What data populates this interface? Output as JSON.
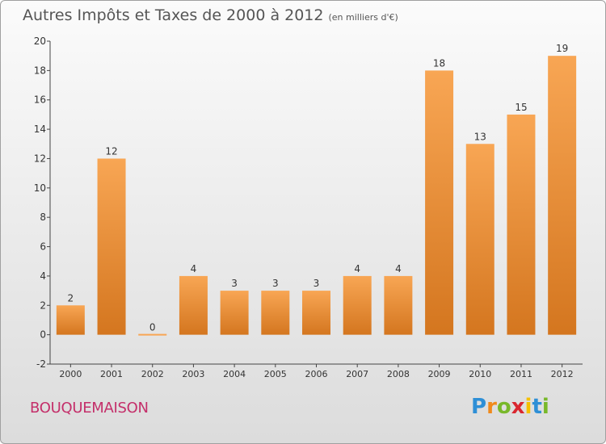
{
  "title": "Autres Impôts et Taxes de 2000 à 2012",
  "subtitle": "(en milliers d'€)",
  "commune": "BOUQUEMAISON",
  "brand": {
    "letters": [
      "P",
      "r",
      "o",
      "x",
      "i",
      "t",
      "i"
    ],
    "colors": [
      "#2e8fd6",
      "#f08a1c",
      "#78b82a",
      "#d9272f",
      "#f5c000",
      "#2e8fd6",
      "#78b82a"
    ]
  },
  "colors": {
    "bar_top": "#f8a654",
    "bar_bottom": "#d4761f",
    "title": "#555555",
    "commune": "#c42f6a"
  },
  "chart_data": {
    "type": "bar",
    "categories": [
      "2000",
      "2001",
      "2002",
      "2003",
      "2004",
      "2005",
      "2006",
      "2007",
      "2008",
      "2009",
      "2010",
      "2011",
      "2012"
    ],
    "values": [
      2,
      12,
      0,
      4,
      3,
      3,
      3,
      4,
      4,
      18,
      13,
      15,
      19
    ],
    "value_labels": [
      "2",
      "12",
      "0",
      "4",
      "3",
      "3",
      "3",
      "4",
      "4",
      "18",
      "13",
      "15",
      "19"
    ],
    "title": "Autres Impôts et Taxes de 2000 à 2012",
    "subtitle": "(en milliers d'€)",
    "xlabel": "",
    "ylabel": "",
    "ylim": [
      -2,
      20
    ],
    "yticks": [
      -2,
      0,
      2,
      4,
      6,
      8,
      10,
      12,
      14,
      16,
      18,
      20
    ],
    "grid": false,
    "legend": "none"
  }
}
